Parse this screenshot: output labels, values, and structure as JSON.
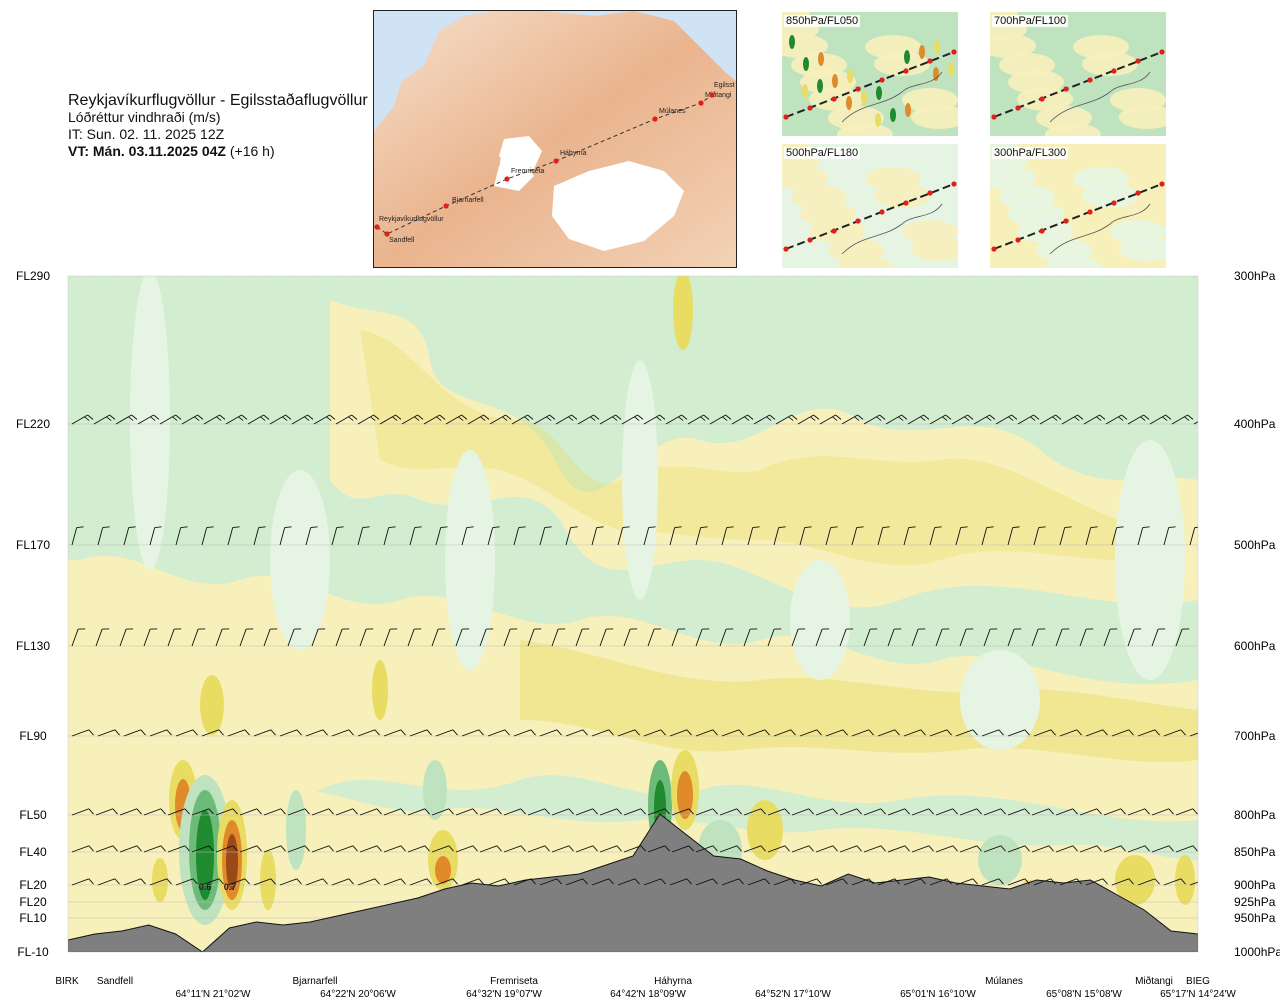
{
  "header": {
    "route": "Reykjavíkurflugvöllur - Egilsstaðaflugvöllur",
    "variable": "Lóðréttur vindhraði (m/s)",
    "it": "IT: Sun. 02. 11. 2025 12Z",
    "vt_bold": "VT: Mán. 03.11.2025 04Z",
    "vt_rest": " (+16 h)"
  },
  "map": {
    "points": [
      {
        "name": "Reykjavíkurflugvöllur",
        "label": "Reykjavíkurflugvöllur"
      },
      {
        "name": "Sandfell",
        "label": "Sandfell"
      },
      {
        "name": "Bjarnarfell",
        "label": "Bjarnarfell"
      },
      {
        "name": "Fremriseta",
        "label": "Fremriseta"
      },
      {
        "name": "Háhyrna",
        "label": "Háhyrna"
      },
      {
        "name": "Múlanes",
        "label": "Múlanes"
      },
      {
        "name": "Miðtangi",
        "label": "Miðtangi"
      },
      {
        "name": "Egilsstaðir",
        "label": "Egilsst"
      }
    ]
  },
  "panels": [
    {
      "label": "850hPa/FL050"
    },
    {
      "label": "700hPa/FL100"
    },
    {
      "label": "500hPa/FL180"
    },
    {
      "label": "300hPa/FL300"
    }
  ],
  "colors": {
    "ground": "#7f7f7f",
    "green_dark": "#1f8a2e",
    "green_mid": "#6dbb78",
    "green_light": "#bfe3bf",
    "green_pale": "#e6f5e3",
    "yellow_pale": "#f7f0bb",
    "yellow": "#e9dc63",
    "orange": "#e08a2c",
    "brown": "#9a4a17",
    "route": "#333333",
    "point": "#e0201b"
  },
  "chart_data": {
    "type": "heatmap",
    "title": "Lóðréttur vindhraði (m/s)",
    "flight_levels": [
      {
        "fl": "FL290",
        "hpa": "300hPa"
      },
      {
        "fl": "FL220",
        "hpa": "400hPa"
      },
      {
        "fl": "FL170",
        "hpa": "500hPa"
      },
      {
        "fl": "FL130",
        "hpa": "600hPa"
      },
      {
        "fl": "FL90",
        "hpa": "700hPa"
      },
      {
        "fl": "FL50",
        "hpa": "800hPa"
      },
      {
        "fl": "FL40",
        "hpa": "850hPa"
      },
      {
        "fl": "FL20",
        "hpa": "900hPa"
      },
      {
        "fl": "FL20",
        "hpa": "925hPa"
      },
      {
        "fl": "FL10",
        "hpa": "950hPa"
      },
      {
        "fl": "FL-10",
        "hpa": "1000hPa"
      }
    ],
    "barb_levels_hpa": [
      300,
      400,
      500,
      600,
      700,
      800,
      850,
      900
    ],
    "waypoints": [
      {
        "name": "BIRK"
      },
      {
        "name": "Sandfell"
      },
      {
        "name": "Bjarnarfell"
      },
      {
        "name": "Fremriseta"
      },
      {
        "name": "Háhyrna"
      },
      {
        "name": "Múlanes"
      },
      {
        "name": "Miðtangi"
      },
      {
        "name": "BIEG"
      }
    ],
    "coordinates": [
      "64°11'N 21°02'W",
      "64°22'N 20°06'W",
      "64°32'N 19°07'W",
      "64°42'N 18°09'W",
      "64°52'N 17°10'W",
      "65°01'N 16°10'W",
      "65°08'N 15°08'W",
      "65°17'N 14°24'W"
    ],
    "value_labels": [
      "0.6",
      "0.7"
    ],
    "terrain_height_fraction": [
      0.0,
      0.02,
      0.03,
      0.05,
      0.02,
      -0.04,
      0.04,
      0.06,
      0.05,
      0.06,
      0.08,
      0.1,
      0.12,
      0.14,
      0.17,
      0.19,
      0.18,
      0.2,
      0.21,
      0.22,
      0.25,
      0.28,
      0.42,
      0.35,
      0.28,
      0.27,
      0.23,
      0.2,
      0.18,
      0.22,
      0.19,
      0.2,
      0.21,
      0.19,
      0.18,
      0.17,
      0.2,
      0.19,
      0.2,
      0.15,
      0.1,
      0.03,
      0.02
    ]
  }
}
